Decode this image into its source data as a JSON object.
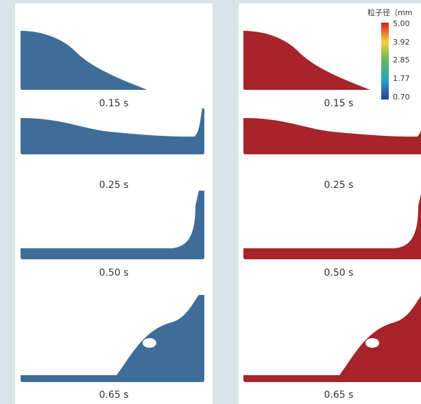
{
  "left_panel": {
    "labels": [
      "0.15 s",
      "0.25 s",
      "0.50 s",
      "0.65 s"
    ]
  },
  "right_panel": {
    "labels": [
      "0.15 s",
      "0.25 s",
      "0.50 s",
      "0.65 s"
    ]
  },
  "color_scale": {
    "title": "粒子径（mm",
    "ticks": [
      "5.00",
      "3.92",
      "2.85",
      "1.77",
      "0.70"
    ]
  }
}
